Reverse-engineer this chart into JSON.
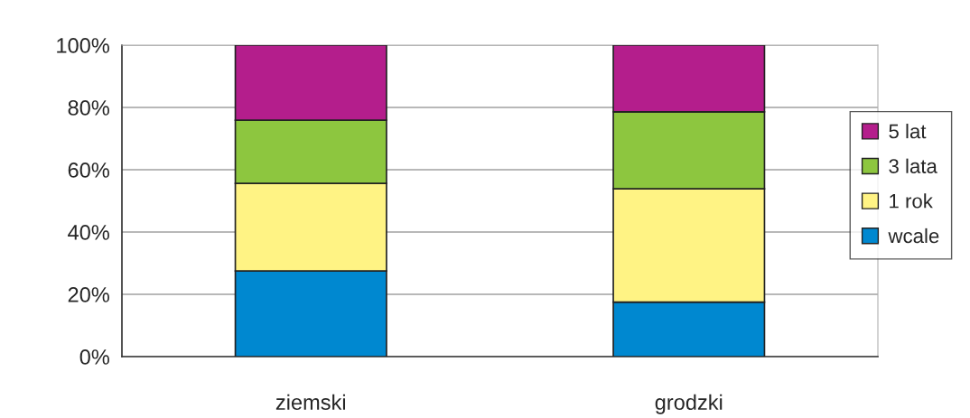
{
  "chart_data": {
    "type": "bar",
    "stacked": true,
    "categories": [
      "ziemski",
      "grodzki"
    ],
    "series": [
      {
        "name": "wcale",
        "color": "#0088d0",
        "values": [
          27.5,
          17.5
        ]
      },
      {
        "name": "1 rok",
        "color": "#fff384",
        "values": [
          28.1,
          36.4
        ]
      },
      {
        "name": "3 lata",
        "color": "#8dc63f",
        "values": [
          20.3,
          24.7
        ]
      },
      {
        "name": "5 lat",
        "color": "#b41e8c",
        "values": [
          24.1,
          21.4
        ]
      }
    ],
    "ylim": [
      0,
      100
    ],
    "yticks": [
      {
        "value": 0,
        "label": "0%"
      },
      {
        "value": 20,
        "label": "20%"
      },
      {
        "value": 40,
        "label": "40%"
      },
      {
        "value": 60,
        "label": "60%"
      },
      {
        "value": 80,
        "label": "80%"
      },
      {
        "value": 100,
        "label": "100%"
      }
    ],
    "grid": "y",
    "legend": "right"
  }
}
